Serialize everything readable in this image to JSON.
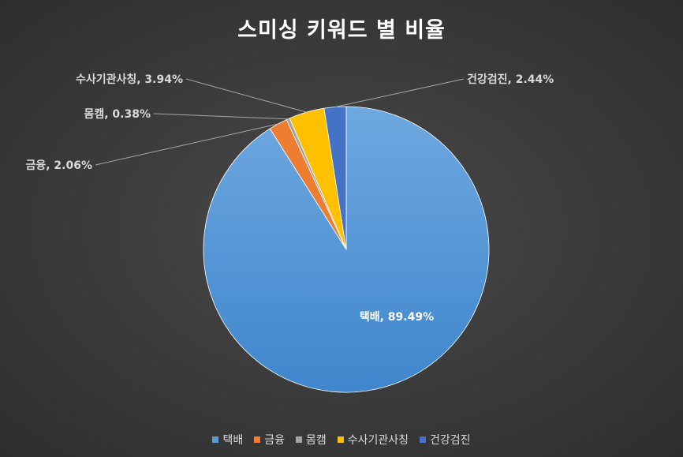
{
  "chart_data": {
    "type": "pie",
    "title": "스미싱 키워드 별 비율",
    "categories": [
      "택배",
      "금융",
      "몸캠",
      "수사기관사칭",
      "건강검진"
    ],
    "values": [
      89.49,
      2.06,
      0.38,
      3.94,
      2.44
    ],
    "value_labels": [
      "89.49%",
      "2.06%",
      "0.38%",
      "3.94%",
      "2.44%"
    ],
    "colors": [
      "#5b9bd5",
      "#ed7d31",
      "#a5a5a5",
      "#ffc000",
      "#4472c4"
    ],
    "legend_position": "bottom"
  }
}
